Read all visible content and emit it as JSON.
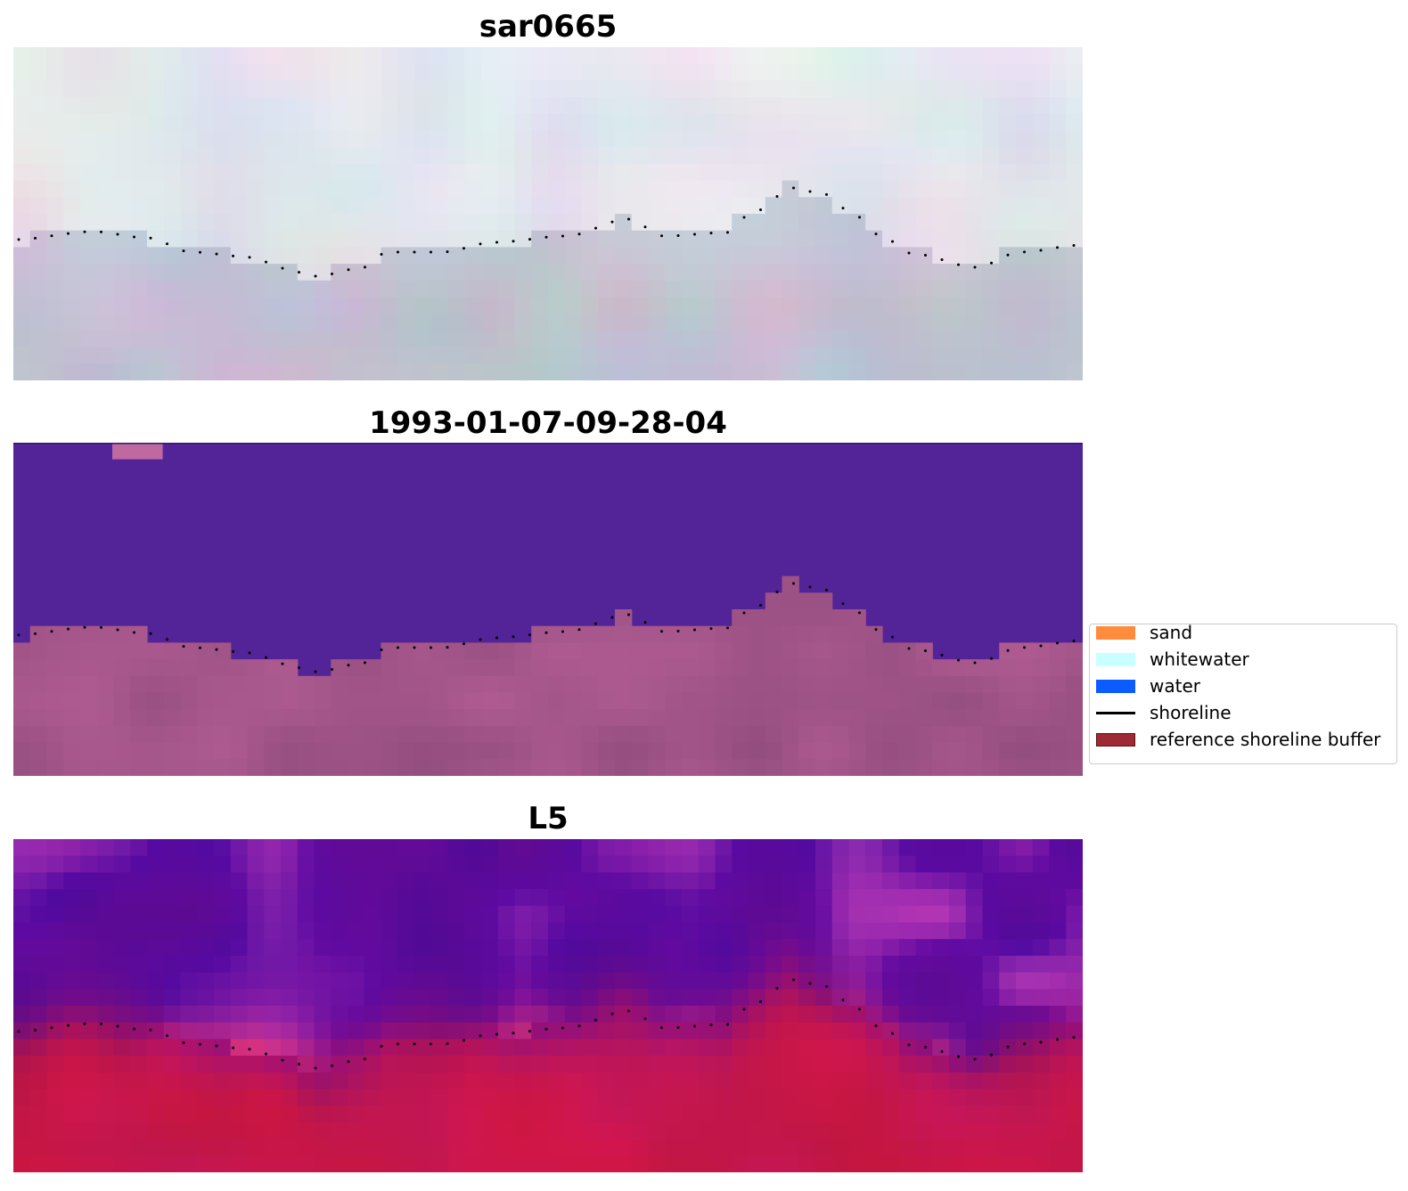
{
  "panels": [
    {
      "title": "sar0665",
      "style": "sar"
    },
    {
      "title": "1993-01-07-09-28-04",
      "style": "classified"
    },
    {
      "title": "L5",
      "style": "index"
    }
  ],
  "legend": {
    "items": [
      {
        "label": "sand",
        "kind": "patch",
        "color": "#ff8c3d"
      },
      {
        "label": "whitewater",
        "kind": "patch",
        "color": "#c8ffff"
      },
      {
        "label": "water",
        "kind": "patch",
        "color": "#0a5cff"
      },
      {
        "label": "shoreline",
        "kind": "line",
        "color": "#000000"
      },
      {
        "label": "reference shoreline buffer",
        "kind": "patch",
        "color": "#9e2a35",
        "edge": "#5a0f16"
      }
    ]
  },
  "colors": {
    "classified_water": "#532398",
    "classified_land": "#a15488",
    "index_water": "#5a0aa0",
    "index_land": "#c8164a",
    "shoreline": "#000000"
  }
}
